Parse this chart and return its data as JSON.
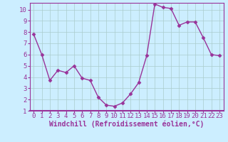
{
  "x": [
    0,
    1,
    2,
    3,
    4,
    5,
    6,
    7,
    8,
    9,
    10,
    11,
    12,
    13,
    14,
    15,
    16,
    17,
    18,
    19,
    20,
    21,
    22,
    23
  ],
  "y": [
    7.8,
    6.0,
    3.7,
    4.6,
    4.4,
    5.0,
    3.9,
    3.7,
    2.2,
    1.5,
    1.4,
    1.7,
    2.5,
    3.5,
    5.9,
    10.5,
    10.2,
    10.1,
    8.6,
    8.9,
    8.9,
    7.5,
    6.0,
    5.9
  ],
  "line_color": "#993399",
  "marker": "D",
  "marker_size": 2.5,
  "bg_color": "#cceeff",
  "grid_color": "#aacccc",
  "xlabel": "Windchill (Refroidissement éolien,°C)",
  "xlim": [
    -0.5,
    23.5
  ],
  "ylim": [
    1,
    10.6
  ],
  "yticks": [
    1,
    2,
    3,
    4,
    5,
    6,
    7,
    8,
    9,
    10
  ],
  "xticks": [
    0,
    1,
    2,
    3,
    4,
    5,
    6,
    7,
    8,
    9,
    10,
    11,
    12,
    13,
    14,
    15,
    16,
    17,
    18,
    19,
    20,
    21,
    22,
    23
  ],
  "xlabel_fontsize": 7.0,
  "tick_fontsize": 6.5,
  "axis_color": "#993399",
  "spine_color": "#993399",
  "line_width": 1.0
}
